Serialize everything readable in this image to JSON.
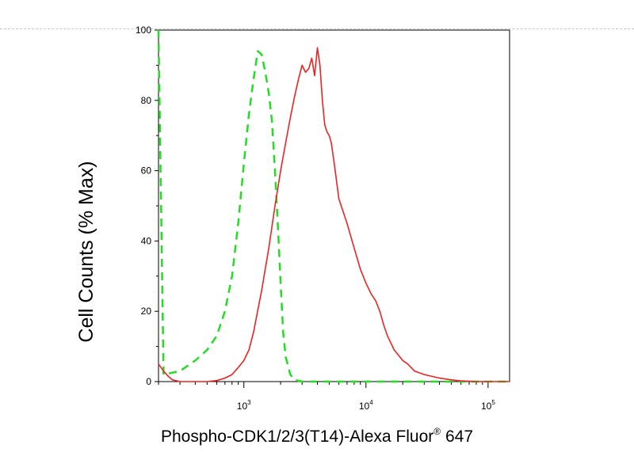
{
  "chart_data": {
    "type": "line",
    "title": "",
    "xlabel": "Phospho-CDK1/2/3(T14)-Alexa Fluor",
    "xlabel_sup": "®",
    "xlabel_tail": " 647",
    "ylabel": "Cell Counts (% Max)",
    "x_scale": "log",
    "xlim": [
      200,
      150000
    ],
    "ylim": [
      0,
      100
    ],
    "y_ticks": [
      0,
      20,
      40,
      60,
      80,
      100
    ],
    "y_tick_labels": [
      "0",
      "20",
      "40",
      "60",
      "80",
      "100"
    ],
    "x_ticks": [
      1000,
      10000,
      100000
    ],
    "x_tick_base": "10",
    "x_tick_exponents": [
      "3",
      "4",
      "5"
    ],
    "grid": false,
    "legend": "none",
    "series": [
      {
        "color": "#22dd22",
        "style": "dashed",
        "x": [
          200,
          220,
          300,
          400,
          500,
          600,
          700,
          800,
          900,
          1000,
          1100,
          1200,
          1300,
          1400,
          1500,
          1600,
          1700,
          1800,
          1900,
          2000,
          2100,
          2200,
          2400,
          2600,
          3000,
          4000,
          10000,
          150000
        ],
        "y": [
          100,
          2,
          3,
          6,
          9,
          13,
          20,
          30,
          45,
          62,
          76,
          86,
          94,
          93,
          88,
          82,
          74,
          60,
          44,
          28,
          14,
          7,
          2,
          0.5,
          0,
          0,
          0,
          0
        ]
      },
      {
        "color": "#ee2222",
        "style": "solid",
        "x": [
          200,
          220,
          240,
          260,
          300,
          400,
          500,
          600,
          700,
          800,
          900,
          1000,
          1100,
          1200,
          1400,
          1600,
          1800,
          2000,
          2200,
          2400,
          2600,
          2800,
          3000,
          3200,
          3400,
          3600,
          3800,
          4000,
          4200,
          4400,
          4600,
          4800,
          5000,
          5200,
          5500,
          6000,
          7000,
          8000,
          9000,
          10000,
          11000,
          12000,
          13000,
          14000,
          15000,
          16000,
          17000,
          18000,
          20000,
          22000,
          25000,
          30000,
          40000,
          50000,
          60000,
          80000,
          100000,
          150000
        ],
        "y": [
          5,
          3,
          1.5,
          0.5,
          0,
          0,
          0,
          0.3,
          1,
          2,
          4,
          6,
          9,
          14,
          26,
          38,
          50,
          60,
          68,
          75,
          81,
          86,
          90,
          88,
          89,
          92,
          87,
          95,
          90,
          80,
          73,
          71,
          70,
          68,
          62,
          52,
          45,
          38,
          32,
          28,
          25,
          23,
          20,
          16,
          13,
          11,
          9,
          8,
          6,
          5,
          3,
          2,
          1,
          0.5,
          0.2,
          0,
          0,
          0
        ]
      }
    ]
  }
}
